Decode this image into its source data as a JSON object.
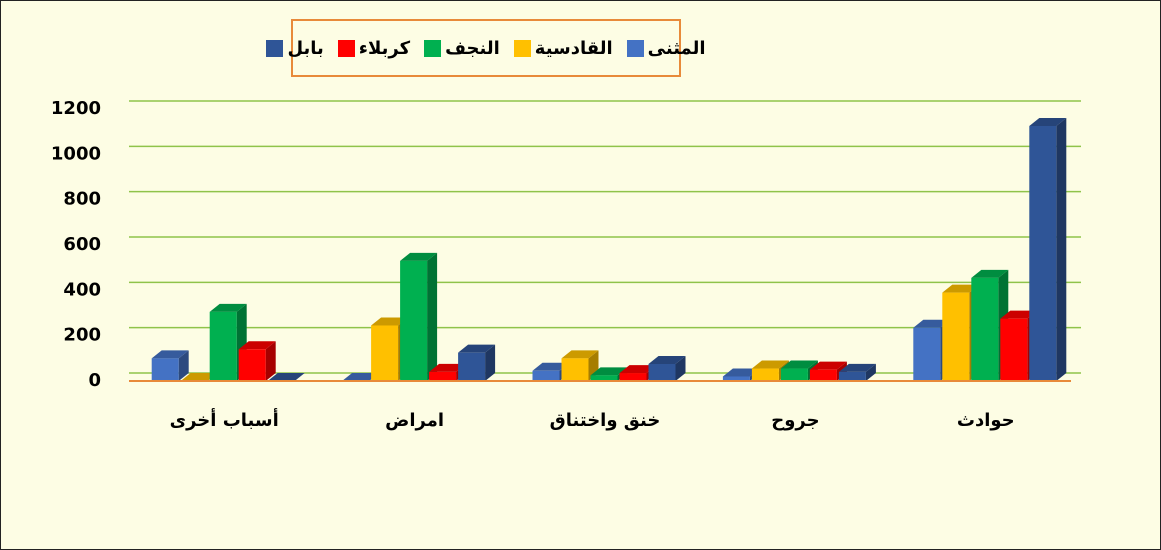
{
  "chart_data": {
    "type": "bar3d",
    "categories": [
      "أسباب أخرى",
      "امراض",
      "خنق واختناق",
      "جروح",
      "حوادث"
    ],
    "series": [
      {
        "name": "المثنى",
        "color": "#4472c4",
        "values": [
          100,
          0,
          45,
          20,
          235
        ]
      },
      {
        "name": "القادسية",
        "color": "#ffc000",
        "values": [
          0,
          245,
          100,
          55,
          390
        ]
      },
      {
        "name": "النجف",
        "color": "#00b050",
        "values": [
          305,
          530,
          25,
          55,
          455
        ]
      },
      {
        "name": "كربلاء",
        "color": "#ff0000",
        "values": [
          140,
          40,
          35,
          50,
          275
        ]
      },
      {
        "name": "بابل",
        "color": "#2f5597",
        "values": [
          0,
          125,
          75,
          40,
          1125
        ]
      }
    ],
    "ylim": [
      0,
      1200
    ],
    "yticks": [
      0,
      200,
      400,
      600,
      800,
      1000,
      1200
    ],
    "grid": true
  }
}
